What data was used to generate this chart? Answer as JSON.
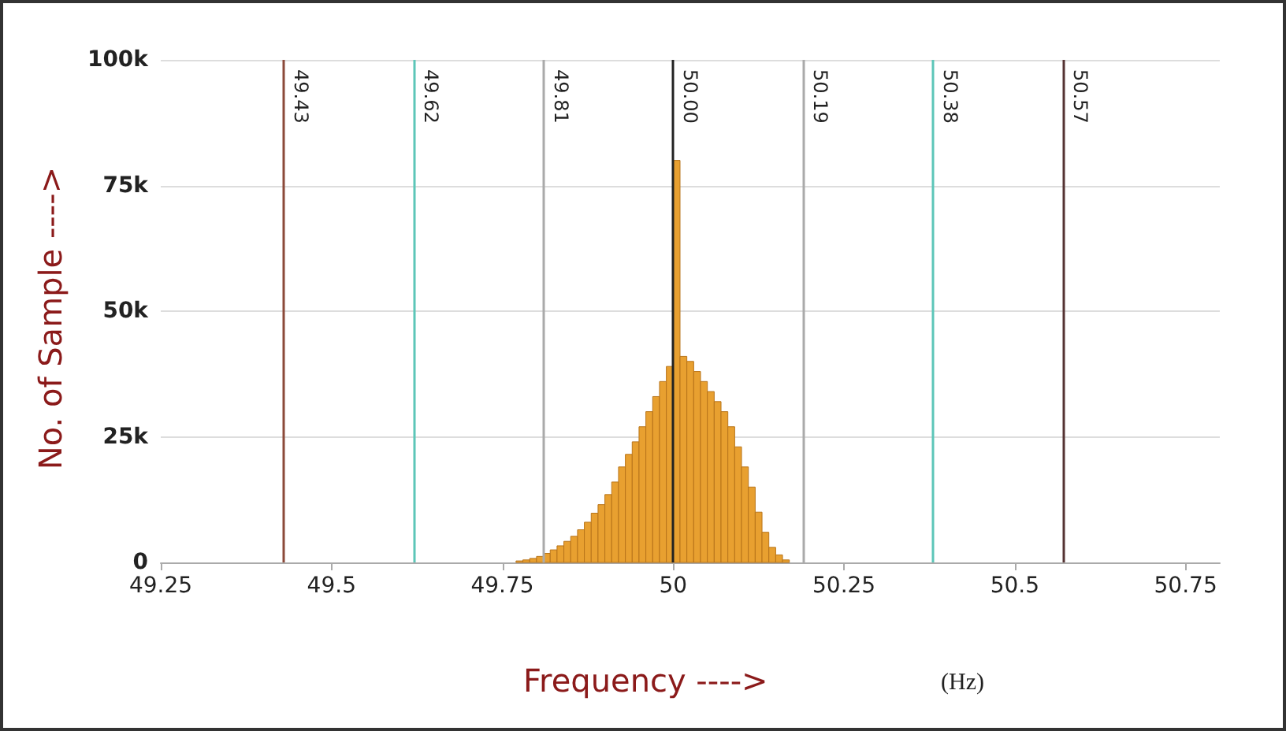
{
  "chart_data": {
    "type": "histogram",
    "xlabel": "Frequency ---->",
    "ylabel": "No. of Sample ---->",
    "annotations": [
      "(Hz)"
    ],
    "bins": [
      49.77,
      49.78,
      49.79,
      49.8,
      49.81,
      49.82,
      49.83,
      49.84,
      49.85,
      49.86,
      49.87,
      49.88,
      49.89,
      49.9,
      49.91,
      49.92,
      49.93,
      49.94,
      49.95,
      49.96,
      49.97,
      49.98,
      49.99,
      50.0,
      50.01,
      50.02,
      50.03,
      50.04,
      50.05,
      50.06,
      50.07,
      50.08,
      50.09,
      50.1,
      50.11,
      50.12,
      50.13,
      50.14,
      50.15,
      50.16,
      50.17
    ],
    "values": [
      300,
      500,
      800,
      1200,
      1800,
      2500,
      3300,
      4200,
      5200,
      6500,
      8000,
      9800,
      11500,
      13500,
      16000,
      19000,
      21500,
      24000,
      27000,
      30000,
      33000,
      36000,
      39000,
      80000,
      41000,
      40000,
      38000,
      36000,
      34000,
      32000,
      30000,
      27000,
      23000,
      19000,
      15000,
      10000,
      6000,
      3000,
      1500,
      500
    ],
    "color": "#e8a030",
    "xlim": [
      49.25,
      50.8
    ],
    "xticks": [
      49.25,
      49.5,
      49.75,
      50,
      50.25,
      50.5,
      50.75
    ],
    "ylim": [
      0,
      100000
    ],
    "yticks": [
      {
        "value": 0,
        "label": "0"
      },
      {
        "value": 25000,
        "label": "25k"
      },
      {
        "value": 50000,
        "label": "50k"
      },
      {
        "value": 75000,
        "label": "75k"
      },
      {
        "value": 100000,
        "label": "100k"
      }
    ],
    "grid": "y",
    "ref_lines": [
      {
        "axis": "x",
        "value": 49.43,
        "label": "49.43",
        "color": "#8b4a3a"
      },
      {
        "axis": "x",
        "value": 49.62,
        "label": "49.62",
        "color": "#5cc6b8"
      },
      {
        "axis": "x",
        "value": 49.81,
        "label": "49.81",
        "color": "#aaaaaa"
      },
      {
        "axis": "x",
        "value": 50.0,
        "label": "50.00",
        "color": "#222222"
      },
      {
        "axis": "x",
        "value": 50.19,
        "label": "50.19",
        "color": "#aaaaaa"
      },
      {
        "axis": "x",
        "value": 50.38,
        "label": "50.38",
        "color": "#5cc6b8"
      },
      {
        "axis": "x",
        "value": 50.57,
        "label": "50.57",
        "color": "#553333"
      }
    ]
  }
}
